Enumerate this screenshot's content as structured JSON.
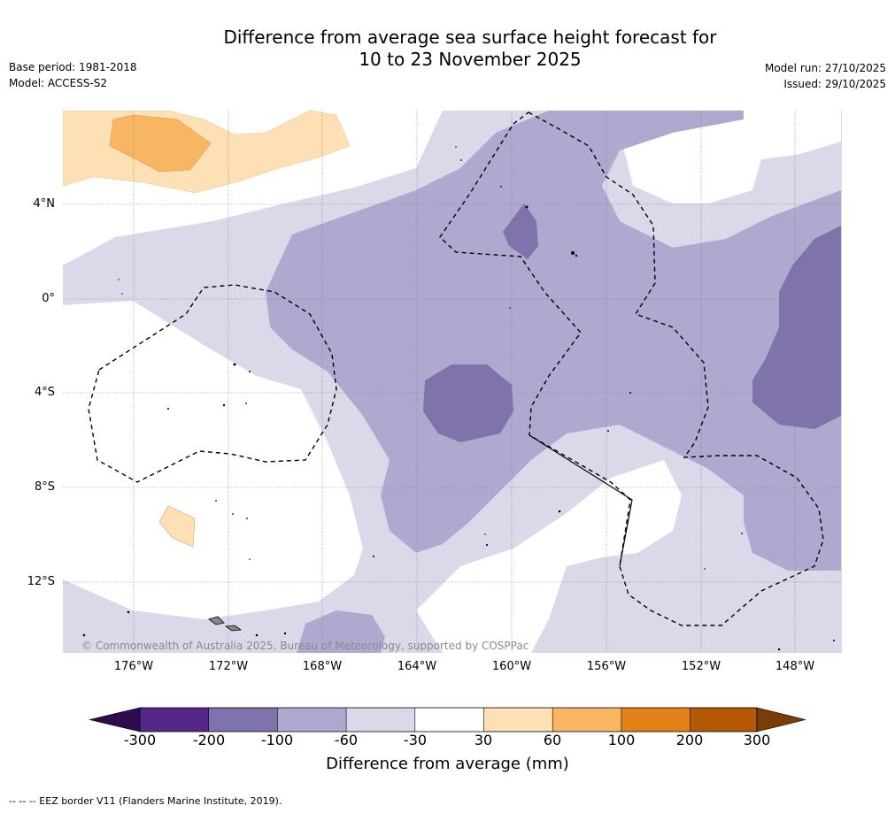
{
  "header": {
    "title_line1": "Difference from average sea surface height forecast for",
    "title_line2": "10 to 23 November 2025",
    "base_period": "Base period: 1981-2018",
    "model": "Model: ACCESS-S2",
    "model_run": "Model run: 27/10/2025",
    "issued": "Issued: 29/10/2025"
  },
  "map": {
    "lat_labels": [
      "4°N",
      "0°",
      "4°S",
      "8°S",
      "12°S"
    ],
    "lon_labels": [
      "176°W",
      "172°W",
      "168°W",
      "164°W",
      "160°W",
      "156°W",
      "152°W",
      "148°W"
    ],
    "copyright": "© Commonwealth of Australia 2025, Bureau of Meteorology, supported by COSPPac"
  },
  "colorbar": {
    "title": "Difference from average (mm)",
    "ticks": [
      "-300",
      "-200",
      "-100",
      "-60",
      "-30",
      "30",
      "60",
      "100",
      "200",
      "300"
    ],
    "colors": {
      "below": "#2e0b4d",
      "n300_200": "#56278b",
      "n200_100": "#8073ab",
      "n100_60": "#afa9d0",
      "n60_30": "#d9d9ea",
      "n30_30": "#ffffff",
      "p30_60": "#fee0b5",
      "p60_100": "#f8b662",
      "p100_200": "#e18218",
      "p200_300": "#b25807",
      "above": "#7a3d06"
    }
  },
  "footer": {
    "eez_note": "--  --  -- EEZ border V11 (Flanders Marine Institute, 2019)."
  }
}
